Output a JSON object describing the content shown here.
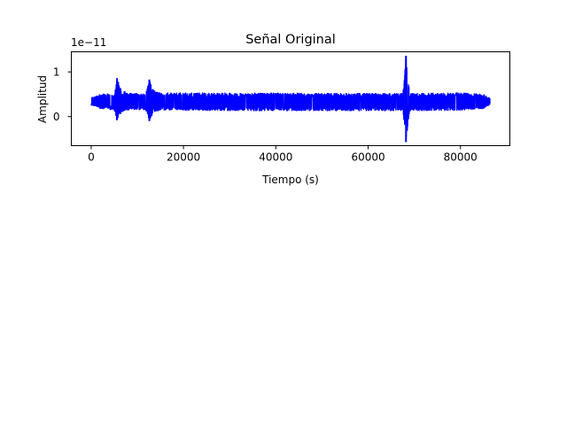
{
  "chart_data": {
    "type": "line",
    "title": "Señal Original",
    "xlabel": "Tiempo (s)",
    "ylabel": "Amplitud",
    "offset_label": "1e−11",
    "xlim": [
      -4300,
      90700
    ],
    "ylim": [
      -0.65,
      1.45
    ],
    "x_ticks": [
      0,
      20000,
      40000,
      60000,
      80000
    ],
    "x_tick_labels": [
      "0",
      "20000",
      "40000",
      "60000",
      "80000"
    ],
    "y_ticks": [
      0,
      1
    ],
    "y_tick_labels": [
      "0",
      "1"
    ],
    "grid": false,
    "line_color": "#0000ff",
    "series": [
      {
        "baseline": 0.33,
        "noise_band": [
          0.2,
          0.49
        ],
        "x_range": [
          0,
          86400
        ],
        "envelope": [
          {
            "x": 0,
            "min": 0.26,
            "max": 0.42
          },
          {
            "x": 2000,
            "min": 0.18,
            "max": 0.5
          },
          {
            "x": 5000,
            "min": 0.15,
            "max": 0.52
          },
          {
            "x": 5600,
            "min": -0.08,
            "max": 0.86
          },
          {
            "x": 6500,
            "min": 0.08,
            "max": 0.6
          },
          {
            "x": 8000,
            "min": 0.15,
            "max": 0.52
          },
          {
            "x": 11800,
            "min": 0.15,
            "max": 0.52
          },
          {
            "x": 12600,
            "min": -0.1,
            "max": 0.83
          },
          {
            "x": 13600,
            "min": 0.1,
            "max": 0.58
          },
          {
            "x": 15000,
            "min": 0.15,
            "max": 0.53
          },
          {
            "x": 30000,
            "min": 0.13,
            "max": 0.53
          },
          {
            "x": 50000,
            "min": 0.13,
            "max": 0.52
          },
          {
            "x": 67500,
            "min": 0.13,
            "max": 0.52
          },
          {
            "x": 68200,
            "min": -0.57,
            "max": 1.36
          },
          {
            "x": 69000,
            "min": 0.13,
            "max": 0.52
          },
          {
            "x": 80000,
            "min": 0.14,
            "max": 0.53
          },
          {
            "x": 85000,
            "min": 0.18,
            "max": 0.5
          },
          {
            "x": 86400,
            "min": 0.27,
            "max": 0.42
          }
        ]
      }
    ]
  }
}
